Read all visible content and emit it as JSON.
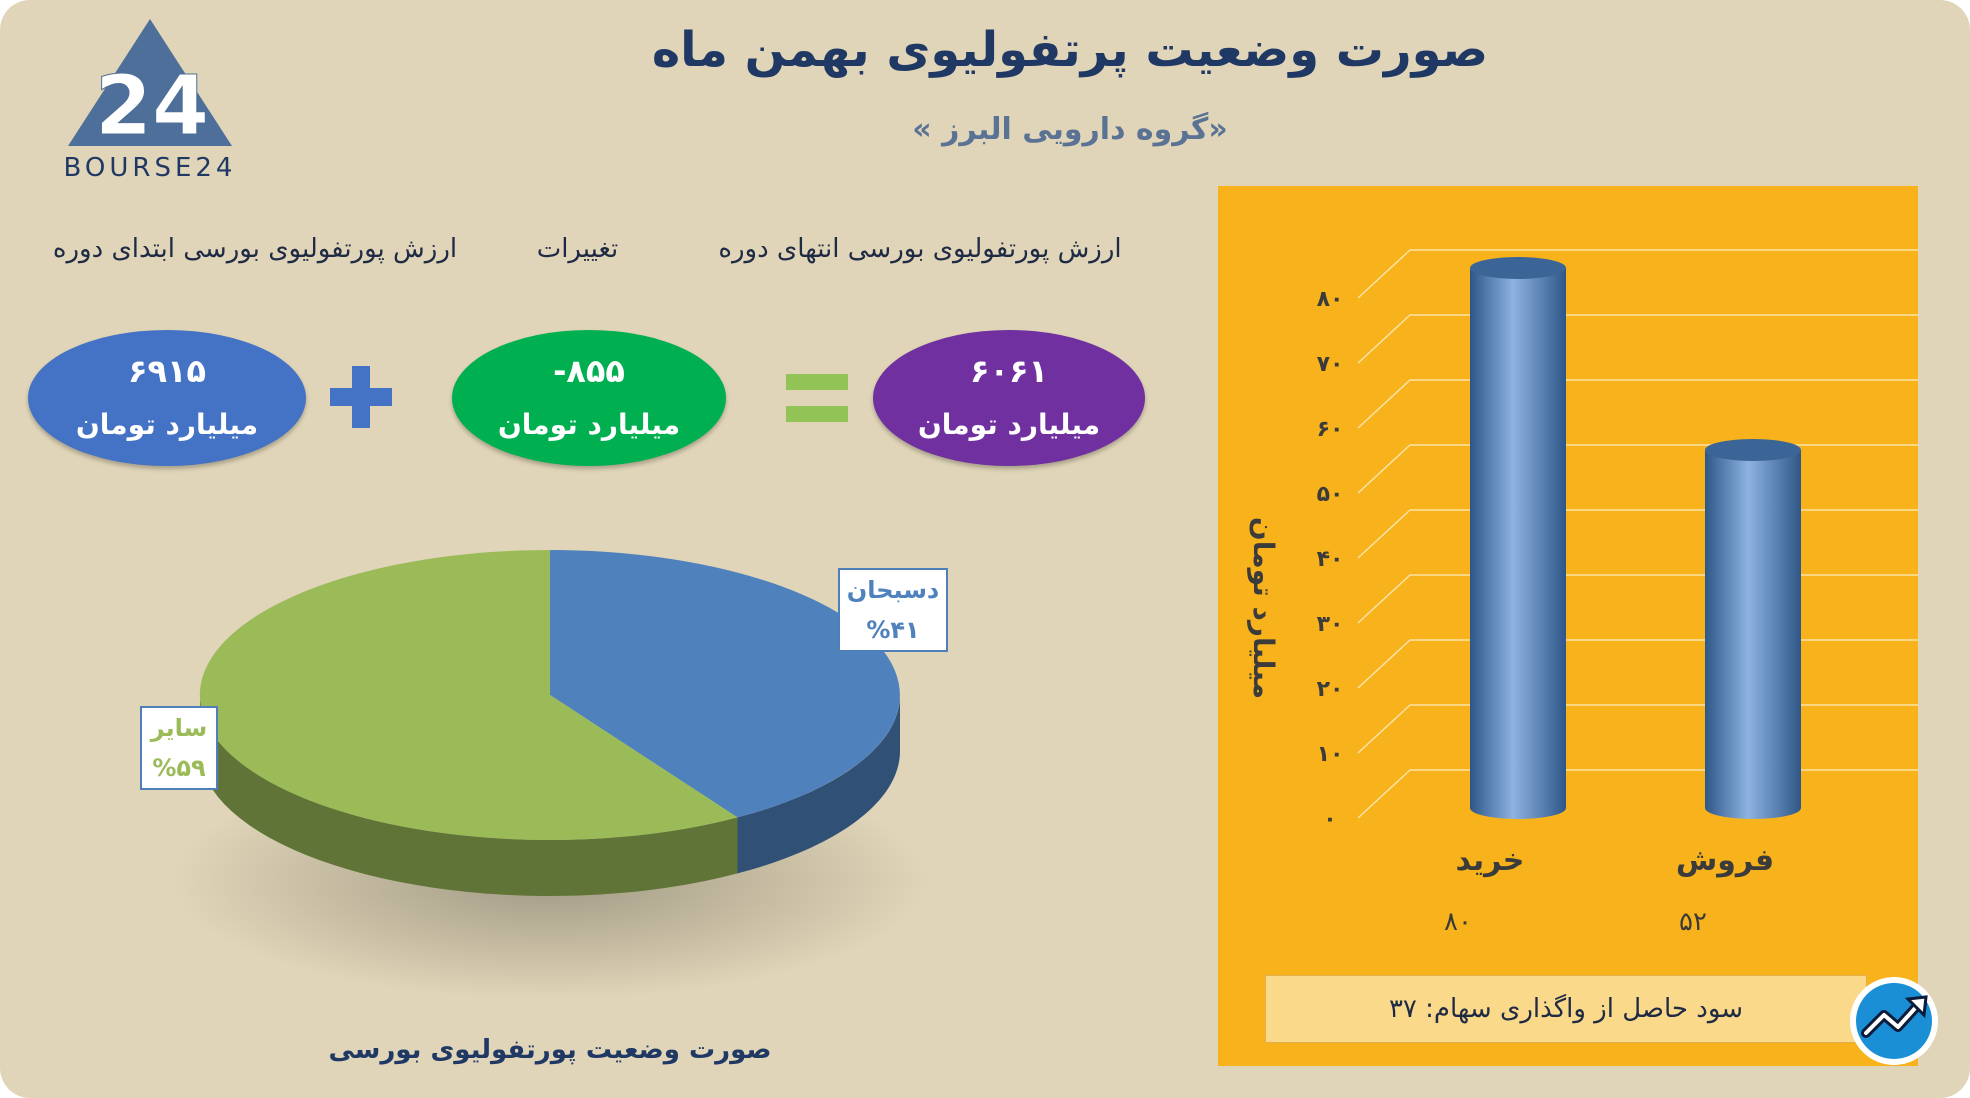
{
  "title": "صورت وضعیت پرتفولیوی بهمن ماه",
  "subtitle": "«گروه دارویی البرز »",
  "logo": {
    "text": "BOURSE24",
    "mark": "24"
  },
  "equation": {
    "headers": {
      "end_value": "ارزش پورتفولیوی بورسی انتهای دوره",
      "changes": "تغییرات",
      "start_value": "ارزش پورتفولیوی بورسی ابتدای دوره"
    },
    "end_value": {
      "amount": "۶۰۶۱",
      "unit": "میلیارد تومان",
      "color": "#6f35a5"
    },
    "changes": {
      "amount": "-۸۵۵",
      "unit": "میلیارد تومان",
      "color": "#00b050"
    },
    "start_value": {
      "amount": "۶۹۱۵",
      "unit": "میلیارد تومان",
      "color": "#4472c4"
    },
    "plus_color": "#4472c4",
    "equals_color": "#92c356"
  },
  "chart_data": [
    {
      "type": "pie",
      "title": "صورت وضعیت پورتفولیوی بورسی",
      "slices": [
        {
          "name": "دسبحان",
          "value": 41,
          "label": "%۴۱",
          "color": "#4f81bd"
        },
        {
          "name": "سایر",
          "value": 59,
          "label": "%۵۹",
          "color": "#9bbb59"
        }
      ]
    },
    {
      "type": "bar",
      "categories": [
        "خرید",
        "فروش"
      ],
      "values": [
        80,
        52
      ],
      "value_labels": [
        "۸۰",
        "۵۲"
      ],
      "ylabel": "میلیارد تومان",
      "ylim": [
        0,
        80
      ],
      "yticks": [
        "۰",
        "۱۰",
        "۲۰",
        "۳۰",
        "۴۰",
        "۵۰",
        "۶۰",
        "۷۰",
        "۸۰"
      ],
      "grid": true,
      "background": "#f7b21c",
      "bar_color": "#4f81bd"
    }
  ],
  "profit": {
    "label": "سود حاصل از واگذاری سهام: ۳۷"
  }
}
